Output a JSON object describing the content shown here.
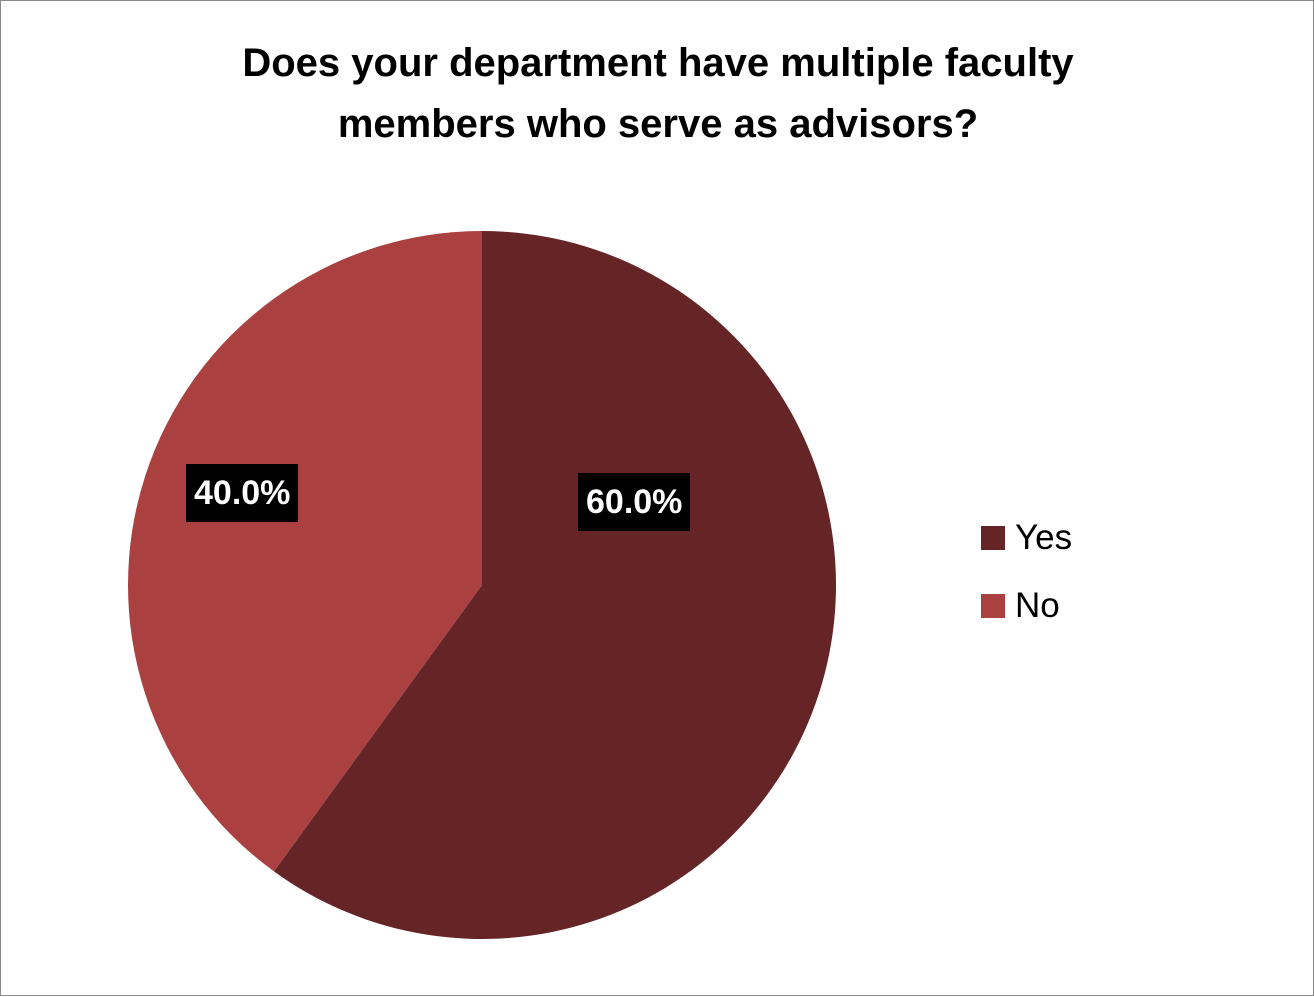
{
  "chart_data": {
    "type": "pie",
    "title_lines": [
      "Does your department have multiple faculty",
      "members who serve as advisors?"
    ],
    "categories": [
      "Yes",
      "No"
    ],
    "values": [
      60.0,
      40.0
    ],
    "labels": [
      "60.0%",
      "40.0%"
    ],
    "colors": [
      "#652426",
      "#aa4140"
    ],
    "legend_position": "right",
    "start_angle": "12 o'clock, clockwise"
  }
}
